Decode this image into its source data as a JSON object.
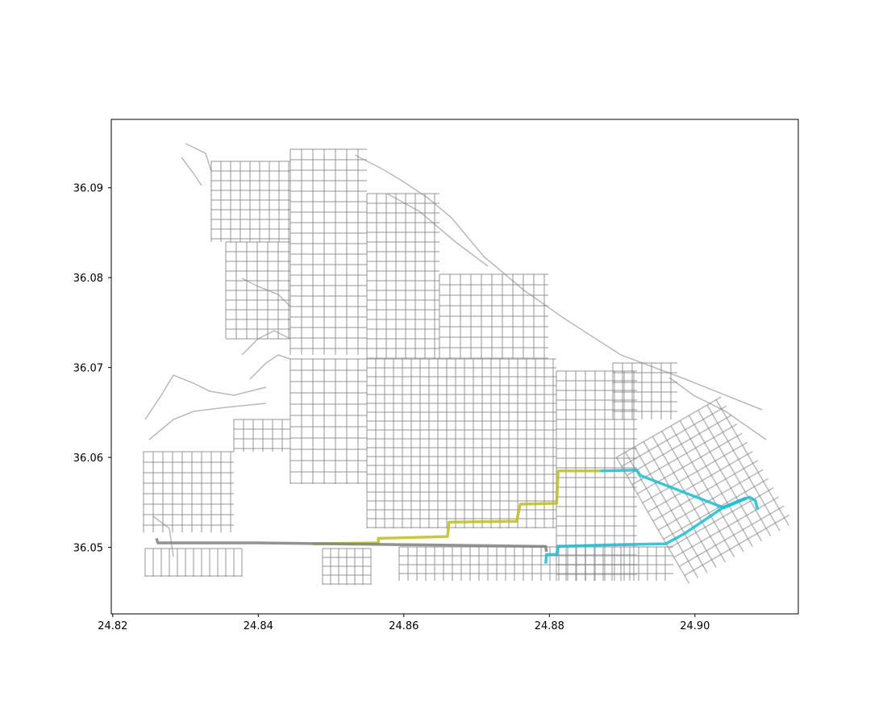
{
  "chart_data": {
    "type": "line",
    "title": "",
    "xlabel": "",
    "ylabel": "",
    "xlim": [
      24.8198,
      24.9142
    ],
    "ylim": [
      36.0426,
      36.0976
    ],
    "x_ticks": [
      "24.82",
      "24.84",
      "24.86",
      "24.88",
      "24.90"
    ],
    "x_tick_values": [
      24.82,
      24.84,
      24.86,
      24.88,
      24.9
    ],
    "y_ticks": [
      "36.05",
      "36.06",
      "36.07",
      "36.08",
      "36.09"
    ],
    "y_tick_values": [
      36.05,
      36.06,
      36.07,
      36.08,
      36.09
    ],
    "grid": false,
    "legend": "none",
    "colors": {
      "road": "#7f7f7f",
      "route_olive": "#bcbd22",
      "route_cyan": "#17becf",
      "route_gray": "#7f7f7f"
    },
    "series": [
      {
        "color": "#bcbd22",
        "points": [
          [
            24.8475,
            36.0504
          ],
          [
            24.8565,
            36.0505
          ],
          [
            24.8565,
            36.051
          ],
          [
            24.866,
            36.0512
          ],
          [
            24.8662,
            36.0528
          ],
          [
            24.8755,
            36.0529
          ],
          [
            24.876,
            36.0548
          ],
          [
            24.881,
            36.0549
          ],
          [
            24.8812,
            36.0585
          ],
          [
            24.887,
            36.0585
          ]
        ]
      },
      {
        "color": "#17becf",
        "points": [
          [
            24.887,
            36.0585
          ],
          [
            24.892,
            36.0586
          ],
          [
            24.8925,
            36.058
          ],
          [
            24.904,
            36.0544
          ],
          [
            24.9075,
            36.0556
          ],
          [
            24.9083,
            36.0552
          ],
          [
            24.9086,
            36.0542
          ]
        ]
      },
      {
        "color": "#17becf",
        "points": [
          [
            24.8795,
            36.0482
          ],
          [
            24.8796,
            36.0492
          ],
          [
            24.881,
            36.0492
          ],
          [
            24.8812,
            36.0501
          ],
          [
            24.889,
            36.0503
          ],
          [
            24.896,
            36.0504
          ],
          [
            24.8985,
            36.0515
          ],
          [
            24.904,
            36.0545
          ],
          [
            24.907,
            36.0555
          ]
        ]
      },
      {
        "color": "#7f7f7f",
        "points": [
          [
            24.826,
            36.051
          ],
          [
            24.8262,
            36.0505
          ],
          [
            24.84,
            36.0505
          ],
          [
            24.86,
            36.0503
          ],
          [
            24.8795,
            36.0501
          ],
          [
            24.8796,
            36.0495
          ]
        ]
      }
    ]
  }
}
